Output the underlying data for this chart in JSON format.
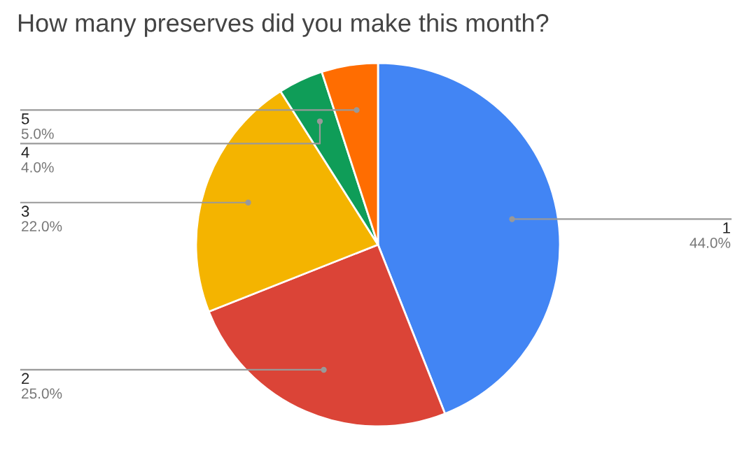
{
  "chart_data": {
    "type": "pie",
    "title": "How many preserves did you make this month?",
    "categories": [
      "1",
      "2",
      "3",
      "4",
      "5"
    ],
    "values": [
      44,
      25,
      22,
      4,
      5
    ],
    "value_labels": [
      "44.0%",
      "25.0%",
      "22.0%",
      "4.0%",
      "5.0%"
    ],
    "colors": [
      "#4285f4",
      "#db4437",
      "#f4b400",
      "#0f9d58",
      "#ff6d01"
    ],
    "legend": false
  }
}
